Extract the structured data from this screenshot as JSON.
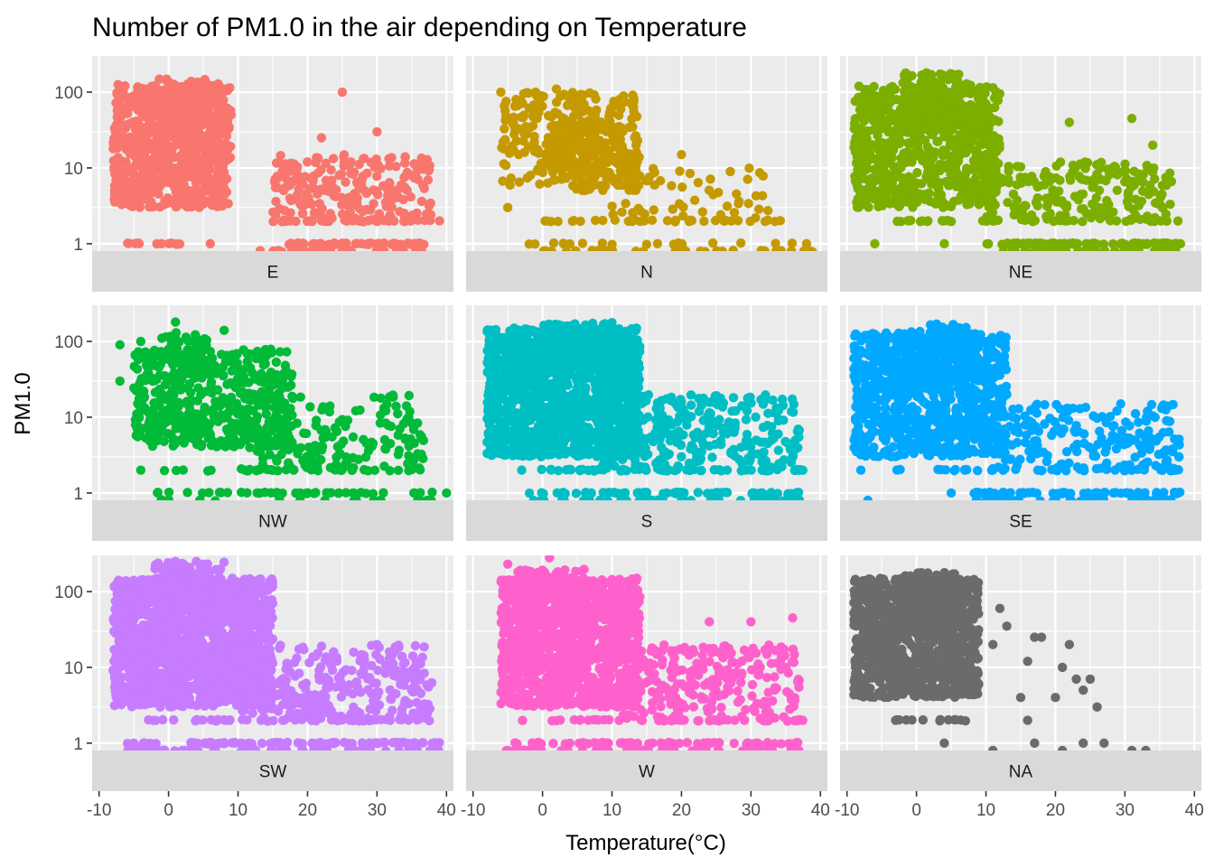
{
  "chart_data": {
    "type": "scatter",
    "title": "Number of PM1.0 in the air depending on Temperature",
    "xlabel": "Temperature(°C)",
    "ylabel": "PM1.0",
    "y_scale": "log10",
    "xlim": [
      -11,
      41
    ],
    "ylim": [
      0.8,
      300
    ],
    "x_ticks": [
      -10,
      0,
      10,
      20,
      30,
      40
    ],
    "x_tick_labels": [
      "-10",
      "0",
      "10",
      "20",
      "30",
      "40"
    ],
    "y_ticks": [
      1,
      10,
      100
    ],
    "y_tick_labels": [
      "1",
      "10",
      "100"
    ],
    "grid": true,
    "legend": "none",
    "facet_layout": "3x3",
    "facets": [
      {
        "label": "E",
        "color": "#F8766D",
        "clusters": [
          {
            "x": [
              -8,
              9
            ],
            "y": [
              3,
              130
            ],
            "n": 650
          },
          {
            "x": [
              -3,
              7
            ],
            "y": [
              20,
              150
            ],
            "n": 150
          },
          {
            "x": [
              15,
              38
            ],
            "y": [
              2,
              15
            ],
            "n": 220
          },
          {
            "x": [
              -6,
              3
            ],
            "y": [
              3,
              10
            ],
            "n": 40
          }
        ],
        "bands": [
          {
            "y": 2,
            "x": [
              15,
              38
            ],
            "n": 40
          },
          {
            "y": 1,
            "x": [
              -6,
              2
            ],
            "n": 12
          },
          {
            "y": 1,
            "x": [
              16,
              37
            ],
            "n": 50
          },
          {
            "y": 0.8,
            "x": [
              13,
              37
            ],
            "n": 30
          }
        ],
        "points": [
          [
            25,
            100
          ],
          [
            39,
            2
          ],
          [
            22,
            25
          ],
          [
            30,
            30
          ],
          [
            9,
            50
          ],
          [
            -1,
            1
          ],
          [
            6,
            1
          ]
        ]
      },
      {
        "label": "N",
        "color": "#C49A00",
        "clusters": [
          {
            "x": [
              -6,
              14
            ],
            "y": [
              5,
              100
            ],
            "n": 300
          },
          {
            "x": [
              9,
              33
            ],
            "y": [
              2,
              10
            ],
            "n": 60
          },
          {
            "x": [
              1,
              12
            ],
            "y": [
              8,
              40
            ],
            "n": 120
          }
        ],
        "bands": [
          {
            "y": 2,
            "x": [
              -3,
              36
            ],
            "n": 30
          },
          {
            "y": 1,
            "x": [
              -2,
              36
            ],
            "n": 20
          },
          {
            "y": 0.8,
            "x": [
              -2,
              39
            ],
            "n": 35
          }
        ],
        "points": [
          [
            -6,
            100
          ],
          [
            -1,
            100
          ],
          [
            2,
            110
          ],
          [
            -5,
            3
          ],
          [
            20,
            15
          ],
          [
            38,
            1
          ]
        ]
      },
      {
        "label": "NE",
        "color": "#7CAE00",
        "clusters": [
          {
            "x": [
              -9,
              12
            ],
            "y": [
              3,
              120
            ],
            "n": 700
          },
          {
            "x": [
              10,
              37
            ],
            "y": [
              2,
              12
            ],
            "n": 200
          },
          {
            "x": [
              -2,
              8
            ],
            "y": [
              30,
              180
            ],
            "n": 120
          }
        ],
        "bands": [
          {
            "y": 2,
            "x": [
              -3,
              38
            ],
            "n": 45
          },
          {
            "y": 1,
            "x": [
              10,
              38
            ],
            "n": 80
          },
          {
            "y": 0.8,
            "x": [
              10,
              38
            ],
            "n": 40
          }
        ],
        "points": [
          [
            31,
            45
          ],
          [
            34,
            20
          ],
          [
            22,
            40
          ],
          [
            -6,
            1
          ],
          [
            4,
            1
          ],
          [
            38,
            1
          ]
        ]
      },
      {
        "label": "NW",
        "color": "#00BA38",
        "clusters": [
          {
            "x": [
              -5,
              18
            ],
            "y": [
              4,
              80
            ],
            "n": 500
          },
          {
            "x": [
              10,
              37
            ],
            "y": [
              2,
              20
            ],
            "n": 160
          },
          {
            "x": [
              -1,
              6
            ],
            "y": [
              40,
              130
            ],
            "n": 50
          }
        ],
        "bands": [
          {
            "y": 2,
            "x": [
              -3,
              38
            ],
            "n": 35
          },
          {
            "y": 1,
            "x": [
              -2,
              38
            ],
            "n": 45
          },
          {
            "y": 0.8,
            "x": [
              -2,
              38
            ],
            "n": 20
          }
        ],
        "points": [
          [
            -7,
            90
          ],
          [
            -7,
            30
          ],
          [
            1,
            180
          ],
          [
            8,
            140
          ],
          [
            -4,
            100
          ],
          [
            40,
            1
          ],
          [
            -4,
            2
          ]
        ]
      },
      {
        "label": "S",
        "color": "#00BFC4",
        "clusters": [
          {
            "x": [
              -8,
              14
            ],
            "y": [
              3,
              150
            ],
            "n": 1200
          },
          {
            "x": [
              8,
              37
            ],
            "y": [
              2,
              20
            ],
            "n": 300
          },
          {
            "x": [
              0,
              10
            ],
            "y": [
              40,
              180
            ],
            "n": 150
          }
        ],
        "bands": [
          {
            "y": 2,
            "x": [
              -2,
              38
            ],
            "n": 60
          },
          {
            "y": 1,
            "x": [
              -2,
              38
            ],
            "n": 60
          },
          {
            "y": 0.8,
            "x": [
              -2,
              38
            ],
            "n": 40
          }
        ],
        "points": [
          [
            -3,
            2
          ],
          [
            7,
            1
          ],
          [
            14,
            15
          ]
        ]
      },
      {
        "label": "SE",
        "color": "#00A9FF",
        "clusters": [
          {
            "x": [
              -9,
              13
            ],
            "y": [
              3,
              130
            ],
            "n": 900
          },
          {
            "x": [
              11,
              38
            ],
            "y": [
              2,
              15
            ],
            "n": 200
          },
          {
            "x": [
              -3,
              8
            ],
            "y": [
              30,
              170
            ],
            "n": 100
          }
        ],
        "bands": [
          {
            "y": 2,
            "x": [
              -3,
              39
            ],
            "n": 35
          },
          {
            "y": 1,
            "x": [
              8,
              38
            ],
            "n": 60
          },
          {
            "y": 0.8,
            "x": [
              8,
              38
            ],
            "n": 40
          }
        ],
        "points": [
          [
            -7,
            0.8
          ],
          [
            5,
            1
          ],
          [
            13,
            20
          ],
          [
            36,
            9
          ],
          [
            -8,
            2
          ]
        ]
      },
      {
        "label": "SW",
        "color": "#C77CFF",
        "clusters": [
          {
            "x": [
              -8,
              15
            ],
            "y": [
              3,
              150
            ],
            "n": 1600
          },
          {
            "x": [
              10,
              38
            ],
            "y": [
              2,
              20
            ],
            "n": 300
          },
          {
            "x": [
              -2,
              8
            ],
            "y": [
              50,
              250
            ],
            "n": 200
          }
        ],
        "bands": [
          {
            "y": 2,
            "x": [
              -3,
              38
            ],
            "n": 50
          },
          {
            "y": 1,
            "x": [
              -6,
              39
            ],
            "n": 90
          },
          {
            "y": 0.8,
            "x": [
              -6,
              39
            ],
            "n": 60
          }
        ],
        "points": [
          [
            -5,
            1
          ],
          [
            4,
            250
          ],
          [
            -7,
            80
          ],
          [
            30,
            20
          ]
        ]
      },
      {
        "label": "W",
        "color": "#FF61CC",
        "clusters": [
          {
            "x": [
              -6,
              14
            ],
            "y": [
              3,
              150
            ],
            "n": 1100
          },
          {
            "x": [
              11,
              37
            ],
            "y": [
              2,
              20
            ],
            "n": 250
          },
          {
            "x": [
              -4,
              6
            ],
            "y": [
              40,
              200
            ],
            "n": 120
          }
        ],
        "bands": [
          {
            "y": 2,
            "x": [
              -3,
              38
            ],
            "n": 45
          },
          {
            "y": 1,
            "x": [
              -6,
              38
            ],
            "n": 60
          },
          {
            "y": 0.8,
            "x": [
              -6,
              38
            ],
            "n": 50
          }
        ],
        "points": [
          [
            -5,
            230
          ],
          [
            1,
            280
          ],
          [
            36,
            45
          ],
          [
            24,
            40
          ],
          [
            30,
            40
          ],
          [
            -1,
            0.8
          ]
        ]
      },
      {
        "label": "NA",
        "color": "#6B6B6B",
        "clusters": [
          {
            "x": [
              -9,
              9
            ],
            "y": [
              4,
              150
            ],
            "n": 1000
          },
          {
            "x": [
              -2,
              6
            ],
            "y": [
              40,
              180
            ],
            "n": 150
          }
        ],
        "bands": [
          {
            "y": 2,
            "x": [
              -3,
              9
            ],
            "n": 12
          }
        ],
        "points": [
          [
            12,
            60
          ],
          [
            13,
            35
          ],
          [
            11,
            20
          ],
          [
            16,
            12
          ],
          [
            17,
            25
          ],
          [
            18,
            25
          ],
          [
            15,
            4
          ],
          [
            16,
            2
          ],
          [
            20,
            4
          ],
          [
            22,
            20
          ],
          [
            21,
            10
          ],
          [
            23,
            7
          ],
          [
            24,
            5
          ],
          [
            25,
            7
          ],
          [
            26,
            3
          ],
          [
            17,
            1
          ],
          [
            24,
            1
          ],
          [
            27,
            1
          ],
          [
            31,
            0.8
          ],
          [
            33,
            0.8
          ],
          [
            11,
            0.8
          ],
          [
            21,
            0.8
          ],
          [
            4,
            1
          ],
          [
            -3,
            2
          ]
        ]
      }
    ]
  }
}
